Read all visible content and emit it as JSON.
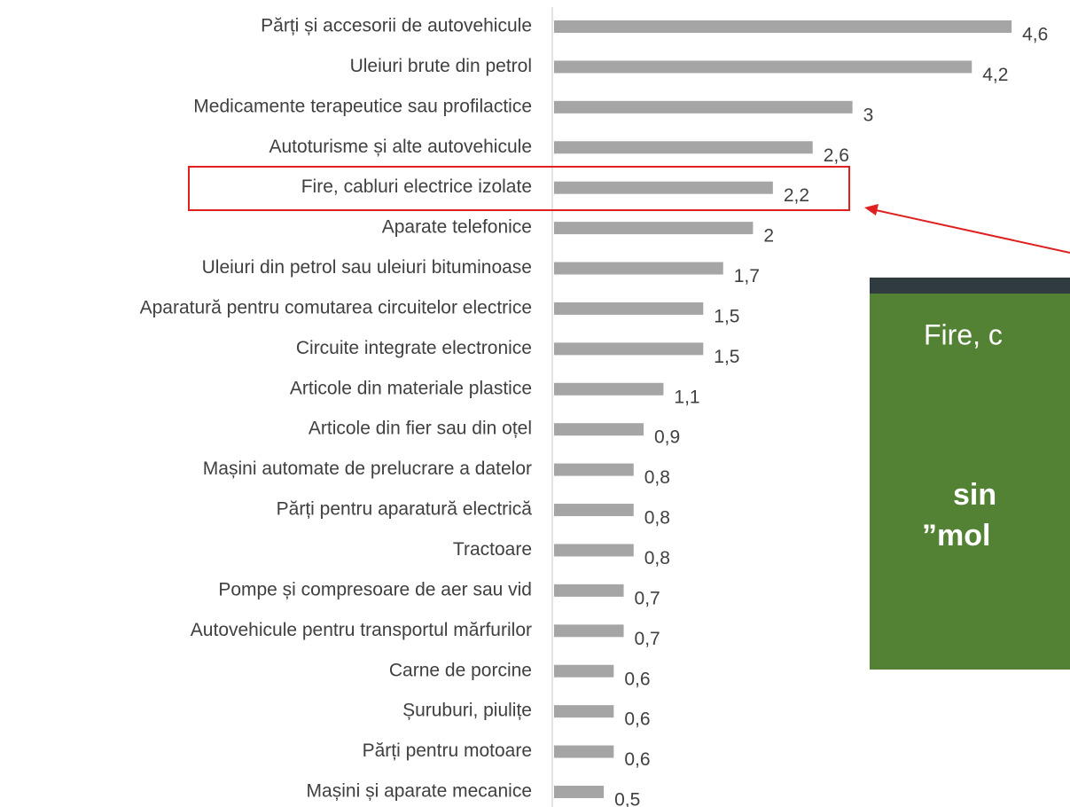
{
  "chart_data": {
    "type": "barh",
    "categories": [
      "Părți și accesorii de autovehicule",
      "Uleiuri brute din petrol",
      "Medicamente terapeutice sau profilactice",
      "Autoturisme și alte autovehicule",
      "Fire, cabluri electrice izolate",
      "Aparate telefonice",
      "Uleiuri din petrol sau uleiuri bituminoase",
      "Aparatură pentru comutarea circuitelor electrice",
      "Circuite integrate electronice",
      "Articole din materiale plastice",
      "Articole din fier sau din oțel",
      "Mașini automate de prelucrare a datelor",
      "Părți pentru aparatură electrică",
      "Tractoare",
      "Pompe și compresoare de aer sau vid",
      "Autovehicule pentru transportul mărfurilor",
      "Carne de porcine",
      "Șuruburi, piulițe",
      "Părți pentru motoare",
      "Mașini și aparate mecanice"
    ],
    "values": [
      4.6,
      4.2,
      3,
      2.6,
      2.2,
      2,
      1.7,
      1.5,
      1.5,
      1.1,
      0.9,
      0.8,
      0.8,
      0.8,
      0.7,
      0.7,
      0.6,
      0.6,
      0.6,
      0.5
    ],
    "value_labels": [
      "4,6",
      "4,2",
      "3",
      "2,6",
      "2,2",
      "2",
      "1,7",
      "1,5",
      "1,5",
      "1,1",
      "0,9",
      "0,8",
      "0,8",
      "0,8",
      "0,7",
      "0,7",
      "0,6",
      "0,6",
      "0,6",
      "0,5"
    ],
    "color": "#a5a5a5",
    "annotations": [
      "Fire, c",
      "sin",
      "”mol"
    ]
  }
}
